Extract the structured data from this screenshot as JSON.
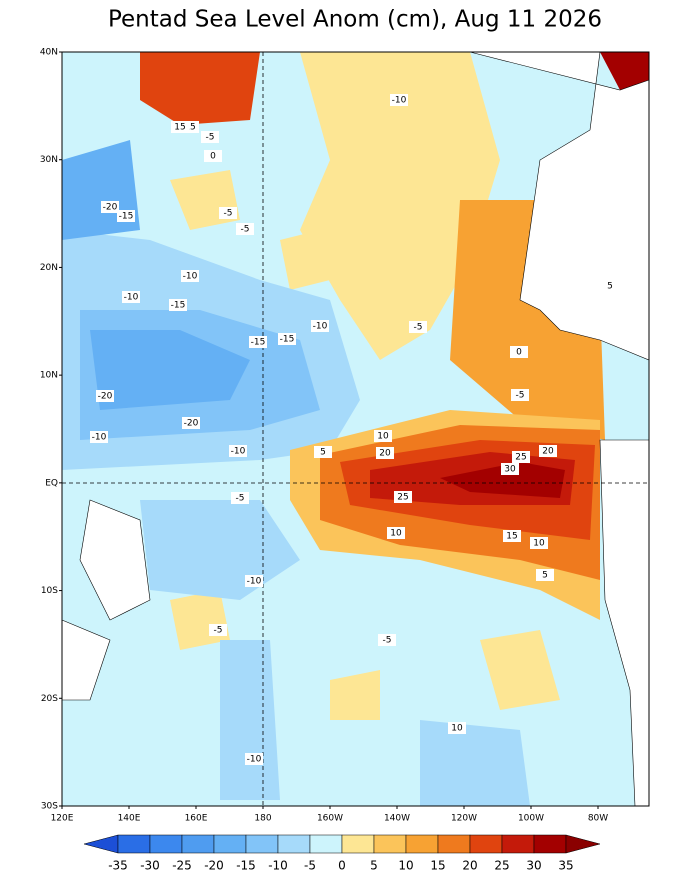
{
  "title": "Pentad Sea Level Anom (cm), Aug 11 2026",
  "lat_labels": [
    "40N",
    "30N",
    "20N",
    "10N",
    "EQ",
    "10S",
    "20S",
    "30S"
  ],
  "lon_labels": [
    "120E",
    "140E",
    "160E",
    "180",
    "160W",
    "140W",
    "120W",
    "100W",
    "80W"
  ],
  "colorbar": {
    "levels": [
      -35,
      -30,
      -25,
      -20,
      -15,
      -10,
      -5,
      0,
      5,
      10,
      15,
      20,
      25,
      30,
      35
    ],
    "colors": [
      "#1c4fd6",
      "#2a6ee6",
      "#3c88ee",
      "#4f9cf0",
      "#64b0f4",
      "#82c4f8",
      "#a6dafa",
      "#cdf4fc",
      "#fde694",
      "#fbc45a",
      "#f7a233",
      "#ef7a1e",
      "#e0440f",
      "#c41a0a",
      "#a30000",
      "#8a0000"
    ]
  },
  "contour_labels": [
    15,
    -5,
    0,
    -20,
    -15,
    -10,
    -15,
    -10,
    -20,
    -20,
    -10,
    -15,
    -10,
    -5,
    -15,
    -10,
    -5,
    5,
    10,
    15,
    20,
    25,
    30,
    25,
    20,
    10,
    15,
    10,
    5,
    -5,
    -10,
    -5,
    -5,
    -10,
    -10,
    -5,
    0,
    5,
    10,
    -5
  ]
}
